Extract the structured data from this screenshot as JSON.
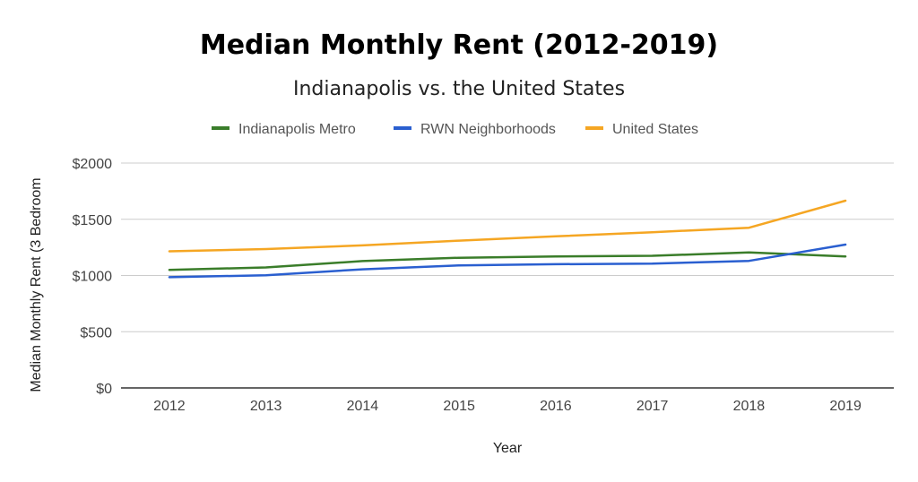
{
  "chart_data": {
    "type": "line",
    "title": "Median Monthly Rent (2012-2019)",
    "subtitle": "Indianapolis vs. the United States",
    "xlabel": "Year",
    "ylabel": "Median Monthly Rent (3 Bedroom",
    "categories": [
      "2012",
      "2013",
      "2014",
      "2015",
      "2016",
      "2017",
      "2018",
      "2019"
    ],
    "ylim": [
      0,
      2000
    ],
    "yticks": [
      {
        "value": 0,
        "label": "$0"
      },
      {
        "value": 500,
        "label": "$500"
      },
      {
        "value": 1000,
        "label": "$1000"
      },
      {
        "value": 1500,
        "label": "$1500"
      },
      {
        "value": 2000,
        "label": "$2000"
      }
    ],
    "grid": true,
    "legend_position": "top",
    "series": [
      {
        "name": "Indianapolis Metro",
        "color": "#3a7d2a",
        "values": [
          1050,
          1072,
          1128,
          1158,
          1170,
          1175,
          1205,
          1170
        ]
      },
      {
        "name": "RWN Neighborhoods",
        "color": "#2a5fd0",
        "values": [
          985,
          1002,
          1055,
          1090,
          1100,
          1105,
          1130,
          1275
        ]
      },
      {
        "name": "United States",
        "color": "#f5a623",
        "values": [
          1215,
          1235,
          1268,
          1310,
          1348,
          1385,
          1425,
          1665
        ]
      }
    ]
  }
}
